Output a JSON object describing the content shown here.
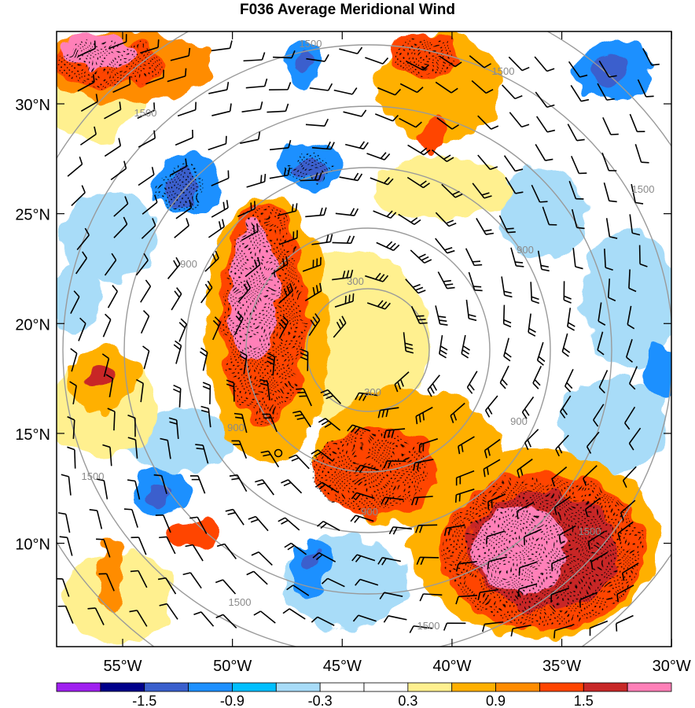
{
  "title": "F036 Average Meridional Wind",
  "lat_labels": [
    "30°N",
    "25°N",
    "20°N",
    "15°N",
    "10°N"
  ],
  "lon_labels": [
    "55°W",
    "50°W",
    "45°W",
    "40°W",
    "35°W",
    "30°W"
  ],
  "colorbar": {
    "colors": [
      "#a020f0",
      "#00008b",
      "#3a5fcd",
      "#1e90ff",
      "#00bfff",
      "#a8dcf8",
      "#ffffff",
      "#ffffff",
      "#fff08f",
      "#ffb000",
      "#ff8c00",
      "#ff4500",
      "#c82828",
      "#ff80b8"
    ],
    "labels": [
      "-1.5",
      "-0.9",
      "-0.3",
      "0.3",
      "0.9",
      "1.5"
    ]
  },
  "contour_labels": [
    "300",
    "900",
    "1500"
  ]
}
